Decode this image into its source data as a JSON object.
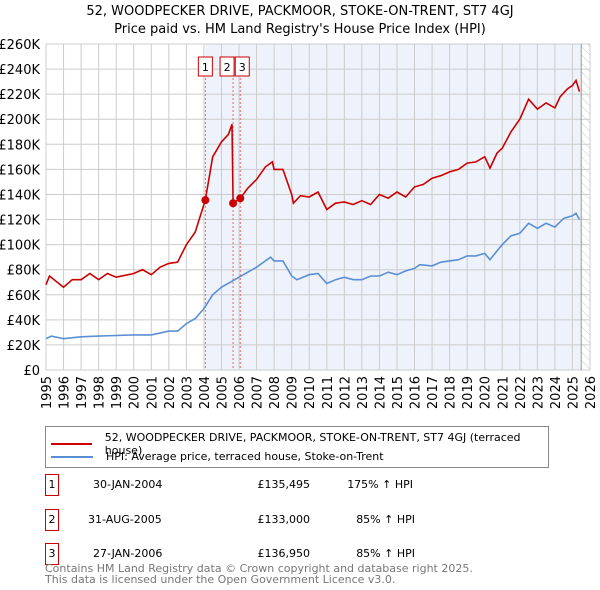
{
  "title": "52, WOODPECKER DRIVE, PACKMOOR, STOKE-ON-TRENT, ST7 4GJ",
  "subtitle": "Price paid vs. HM Land Registry's House Price Index (HPI)",
  "legend": {
    "property": "52, WOODPECKER DRIVE, PACKMOOR, STOKE-ON-TRENT, ST7 4GJ (terraced house)",
    "hpi": "HPI: Average price, terraced house, Stoke-on-Trent"
  },
  "sales": [
    {
      "num": "1",
      "date": "30-JAN-2004",
      "price": "£135,495",
      "hpi": "175% ↑ HPI",
      "x": 2004.08,
      "y": 135495
    },
    {
      "num": "2",
      "date": "31-AUG-2005",
      "price": "£133,000",
      "hpi": "85% ↑ HPI",
      "x": 2005.66,
      "y": 133000
    },
    {
      "num": "3",
      "date": "27-JAN-2006",
      "price": "£136,950",
      "hpi": "85% ↑ HPI",
      "x": 2006.07,
      "y": 136950
    }
  ],
  "footer": {
    "line1": "Contains HM Land Registry data © Crown copyright and database right 2025.",
    "line2": "This data is licensed under the Open Government Licence v3.0."
  },
  "colors": {
    "property": "#cc0000",
    "hpi": "#5b8fd4",
    "shade": "#eef2fb"
  },
  "chart_data": {
    "type": "line",
    "xlim": [
      1995,
      2026
    ],
    "ylim": [
      0,
      260000
    ],
    "shaded_from": 2004.08,
    "data_end": 2025.5,
    "yticks": [
      0,
      20000,
      40000,
      60000,
      80000,
      100000,
      120000,
      140000,
      160000,
      180000,
      200000,
      220000,
      240000,
      260000
    ],
    "ytick_labels": [
      "£0",
      "£20K",
      "£40K",
      "£60K",
      "£80K",
      "£100K",
      "£120K",
      "£140K",
      "£160K",
      "£180K",
      "£200K",
      "£220K",
      "£240K",
      "£260K"
    ],
    "xtick_labels": [
      "1995",
      "1996",
      "1997",
      "1998",
      "1999",
      "2000",
      "2001",
      "2002",
      "2003",
      "2004",
      "2005",
      "2006",
      "2007",
      "2008",
      "2009",
      "2010",
      "2011",
      "2012",
      "2013",
      "2014",
      "2015",
      "2016",
      "2017",
      "2018",
      "2019",
      "2020",
      "2021",
      "2022",
      "2023",
      "2024",
      "2025",
      "2026"
    ],
    "series": [
      {
        "name": "property",
        "x": [
          1995,
          1995.2,
          1996,
          1996.5,
          1997,
          1997.5,
          1998,
          1998.5,
          1999,
          2000,
          2000.5,
          2001,
          2001.5,
          2002,
          2002.5,
          2003,
          2003.5,
          2004.08,
          2004.5,
          2005,
          2005.4,
          2005.6,
          2005.66,
          2006.07,
          2006.5,
          2007,
          2007.5,
          2007.9,
          2008,
          2008.5,
          2009,
          2009.1,
          2009.5,
          2010,
          2010.5,
          2011,
          2011.5,
          2012,
          2012.5,
          2013,
          2013.5,
          2014,
          2014.5,
          2015,
          2015.5,
          2016,
          2016.5,
          2017,
          2017.5,
          2018,
          2018.5,
          2019,
          2019.5,
          2020,
          2020.3,
          2020.7,
          2021,
          2021.5,
          2022,
          2022.5,
          2023,
          2023.5,
          2024,
          2024.3,
          2024.7,
          2025,
          2025.2,
          2025.4
        ],
        "values": [
          68000,
          75000,
          66000,
          72000,
          72000,
          77000,
          72000,
          77000,
          74000,
          77000,
          80000,
          76000,
          82000,
          85000,
          86000,
          100000,
          110000,
          135495,
          170000,
          182000,
          188000,
          196000,
          133000,
          136950,
          145000,
          152000,
          162000,
          166000,
          160000,
          160000,
          140000,
          133000,
          139000,
          138000,
          142000,
          128000,
          133000,
          134000,
          132000,
          135000,
          132000,
          140000,
          137000,
          142000,
          138000,
          146000,
          148000,
          153000,
          155000,
          158000,
          160000,
          165000,
          166000,
          170000,
          161000,
          173000,
          177000,
          190000,
          200000,
          216000,
          208000,
          213000,
          209000,
          218000,
          224000,
          227000,
          231000,
          222000
        ]
      },
      {
        "name": "hpi",
        "x": [
          1995,
          1995.3,
          1996,
          1997,
          1998,
          1999,
          2000,
          2001,
          2002,
          2002.5,
          2003,
          2003.5,
          2004,
          2004.5,
          2005,
          2005.5,
          2006,
          2006.5,
          2007,
          2007.5,
          2007.8,
          2008,
          2008.5,
          2009,
          2009.3,
          2010,
          2010.5,
          2011,
          2011.5,
          2012,
          2012.5,
          2013,
          2013.5,
          2014,
          2014.5,
          2015,
          2015.5,
          2016,
          2016.3,
          2017,
          2017.5,
          2018,
          2018.5,
          2019,
          2019.5,
          2020,
          2020.3,
          2020.7,
          2021,
          2021.5,
          2022,
          2022.5,
          2023,
          2023.5,
          2024,
          2024.5,
          2025,
          2025.2,
          2025.4
        ],
        "values": [
          25000,
          27000,
          25000,
          26500,
          27000,
          27500,
          28000,
          28000,
          31000,
          31000,
          37000,
          41000,
          49000,
          60000,
          66000,
          70000,
          74000,
          78000,
          82000,
          87000,
          90000,
          87000,
          87000,
          75000,
          72000,
          76000,
          77000,
          69000,
          72000,
          74000,
          72000,
          72000,
          75000,
          75000,
          78000,
          76000,
          79000,
          81000,
          84000,
          83000,
          86000,
          87000,
          88000,
          91000,
          91000,
          93000,
          88000,
          95000,
          100000,
          107000,
          109000,
          117000,
          113000,
          117000,
          114000,
          121000,
          123000,
          125000,
          120000
        ]
      }
    ]
  }
}
